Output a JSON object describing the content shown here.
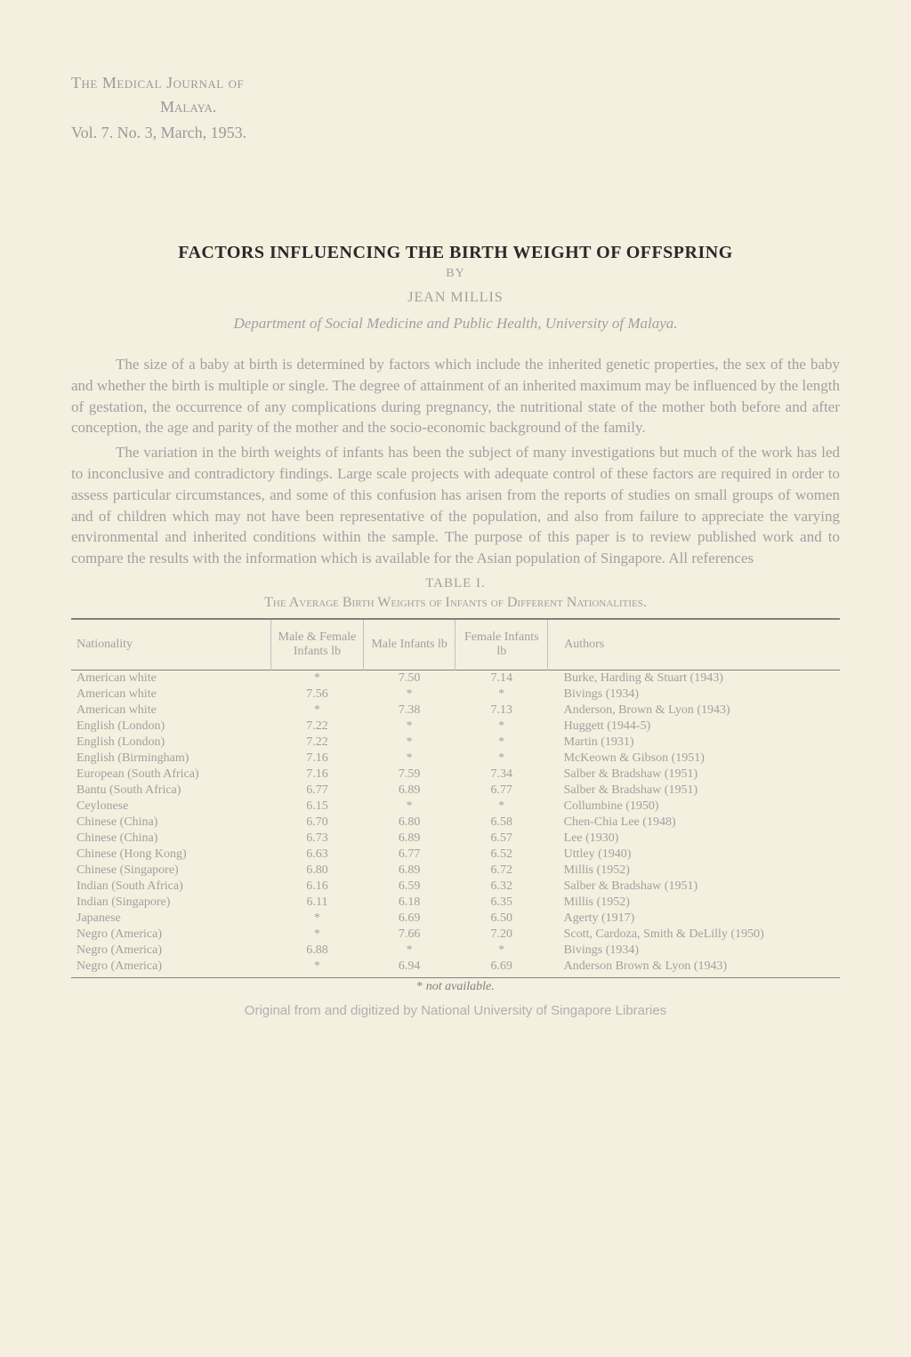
{
  "header": {
    "journal": "The Medical Journal of",
    "place": "Malaya.",
    "issue": "Vol. 7. No. 3, March, 1953."
  },
  "title": "FACTORS INFLUENCING THE BIRTH WEIGHT OF OFFSPRING",
  "by": "BY",
  "author": "JEAN MILLIS",
  "department": "Department of Social Medicine and Public Health, University of Malaya.",
  "paragraphs": [
    "The size of a baby at birth is determined by factors which include the inherited genetic properties, the sex of the baby and whether the birth is multiple or single. The degree of attainment of an inherited maximum may be influenced by the length of gestation, the occurrence of any complications during pregnancy, the nutritional state of the mother both before and after conception, the age and parity of the mother and the socio-economic background of the family.",
    "The variation in the birth weights of infants has been the subject of many investigations but much of the work has led to inconclusive and contradictory findings. Large scale projects with adequate control of these factors are required in order to assess particular circumstances, and some of this confusion has arisen from the reports of studies on small groups of women and of children which may not have been representative of the population, and also from failure to appreciate the varying environmental and inherited conditions within the sample. The purpose of this paper is to review published work and to compare the results with the information which is available for the Asian population of Singapore. All references"
  ],
  "table": {
    "caption": "TABLE I.",
    "title": "The Average Birth Weights of Infants of Different Nationalities.",
    "columns": [
      "Nationality",
      "Male & Female Infants lb",
      "Male Infants lb",
      "Female Infants lb",
      "Authors"
    ],
    "rows": [
      [
        "American white",
        "*",
        "7.50",
        "7.14",
        "Burke, Harding & Stuart (1943)"
      ],
      [
        "American white",
        "7.56",
        "*",
        "*",
        "Bivings (1934)"
      ],
      [
        "American white",
        "*",
        "7.38",
        "7.13",
        "Anderson, Brown & Lyon (1943)"
      ],
      [
        "English (London)",
        "7.22",
        "*",
        "*",
        "Huggett (1944-5)"
      ],
      [
        "English (London)",
        "7.22",
        "*",
        "*",
        "Martin (1931)"
      ],
      [
        "English (Birmingham)",
        "7.16",
        "*",
        "*",
        "McKeown & Gibson (1951)"
      ],
      [
        "European (South Africa)",
        "7.16",
        "7.59",
        "7.34",
        "Salber & Bradshaw (1951)"
      ],
      [
        "Bantu (South Africa)",
        "6.77",
        "6.89",
        "6.77",
        "Salber & Bradshaw (1951)"
      ],
      [
        "Ceylonese",
        "6.15",
        "*",
        "*",
        "Collumbine (1950)"
      ],
      [
        "Chinese (China)",
        "6.70",
        "6.80",
        "6.58",
        "Chen-Chia Lee (1948)"
      ],
      [
        "Chinese (China)",
        "6.73",
        "6.89",
        "6.57",
        "Lee (1930)"
      ],
      [
        "Chinese (Hong Kong)",
        "6.63",
        "6.77",
        "6.52",
        "Uttley (1940)"
      ],
      [
        "Chinese (Singapore)",
        "6.80",
        "6.89",
        "6.72",
        "Millis (1952)"
      ],
      [
        "Indian (South Africa)",
        "6.16",
        "6.59",
        "6.32",
        "Salber & Bradshaw (1951)"
      ],
      [
        "Indian (Singapore)",
        "6.11",
        "6.18",
        "6.35",
        "Millis (1952)"
      ],
      [
        "Japanese",
        "*",
        "6.69",
        "6.50",
        "Agerty (1917)"
      ],
      [
        "Negro (America)",
        "*",
        "7.66",
        "7.20",
        "Scott, Cardoza, Smith & DeLilly (1950)"
      ],
      [
        "Negro (America)",
        "6.88",
        "*",
        "*",
        "Bivings (1934)"
      ],
      [
        "Negro (America)",
        "*",
        "6.94",
        "6.69",
        "Anderson Brown & Lyon (1943)"
      ]
    ],
    "footnote_marker": "*",
    "footnote_text": "not available."
  },
  "digitized": "Original from and digitized by National University of Singapore Libraries"
}
